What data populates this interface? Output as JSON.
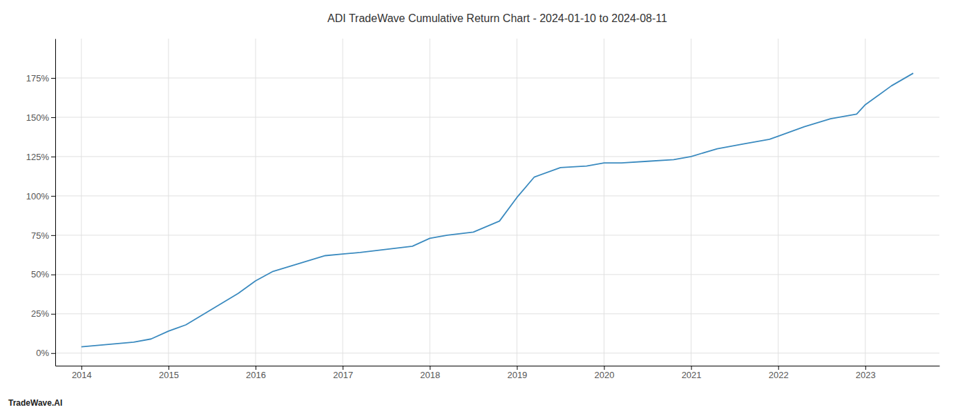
{
  "chart_data": {
    "type": "line",
    "title": "ADI TradeWave Cumulative Return Chart - 2024-01-10 to 2024-08-11",
    "annotations": [
      {
        "text": "TradeWave.AI"
      }
    ],
    "x": [
      2014.0,
      2014.2,
      2014.4,
      2014.6,
      2014.8,
      2015.0,
      2015.2,
      2015.5,
      2015.8,
      2016.0,
      2016.2,
      2016.5,
      2016.8,
      2017.0,
      2017.2,
      2017.5,
      2017.8,
      2018.0,
      2018.2,
      2018.5,
      2018.8,
      2019.0,
      2019.2,
      2019.5,
      2019.8,
      2020.0,
      2020.2,
      2020.5,
      2020.8,
      2021.0,
      2021.3,
      2021.6,
      2021.9,
      2022.0,
      2022.3,
      2022.6,
      2022.9,
      2023.0,
      2023.3,
      2023.55
    ],
    "values": [
      4,
      5,
      6,
      7,
      9,
      14,
      18,
      28,
      38,
      46,
      52,
      57,
      62,
      63,
      64,
      66,
      68,
      73,
      75,
      77,
      84,
      99,
      112,
      118,
      119,
      121,
      121,
      122,
      123,
      125,
      130,
      133,
      136,
      138,
      144,
      149,
      152,
      158,
      170,
      178
    ],
    "color": "#3a8abf",
    "xlim": [
      2013.7,
      2023.85
    ],
    "ylim": [
      -8,
      200
    ],
    "xticks": [
      2014,
      2015,
      2016,
      2017,
      2018,
      2019,
      2020,
      2021,
      2022,
      2023
    ],
    "yticks": [
      {
        "value": 0,
        "label": "0%"
      },
      {
        "value": 25,
        "label": "25%"
      },
      {
        "value": 50,
        "label": "50%"
      },
      {
        "value": 75,
        "label": "75%"
      },
      {
        "value": 100,
        "label": "100%"
      },
      {
        "value": 125,
        "label": "125%"
      },
      {
        "value": 150,
        "label": "150%"
      },
      {
        "value": 175,
        "label": "175%"
      }
    ],
    "grid": true
  }
}
